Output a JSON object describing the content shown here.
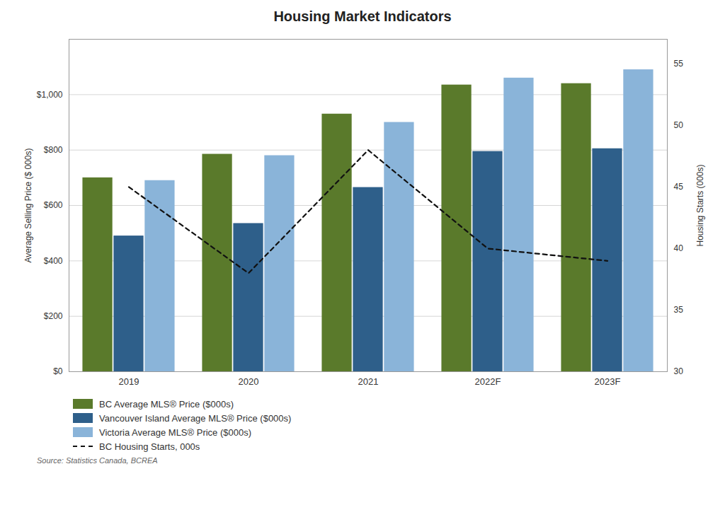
{
  "chart_data": {
    "type": "bar",
    "title": "Housing Market Indicators",
    "categories": [
      "2019",
      "2020",
      "2021",
      "2022F",
      "2023F"
    ],
    "series": [
      {
        "name": "BC Average MLS® Price ($000s)",
        "color": "#5a7a2b",
        "values": [
          700,
          785,
          930,
          1035,
          1040
        ]
      },
      {
        "name": "Vancouver Island Average MLS® Price ($000s)",
        "color": "#2e5f8a",
        "values": [
          490,
          535,
          665,
          795,
          805
        ]
      },
      {
        "name": "Victoria Average MLS® Price ($000s)",
        "color": "#8ab4d9",
        "values": [
          690,
          780,
          900,
          1060,
          1090
        ]
      },
      {
        "name": "BC Housing Starts, 000s",
        "color": "#111111",
        "values": [
          45,
          38,
          48,
          40,
          39
        ],
        "type": "line",
        "axis": "y2",
        "line_style": "dashed"
      }
    ],
    "ylabel": "Average Selling Price ($ 000s)",
    "y2label": "Housing Starts (000s)",
    "ylim": [
      0,
      1200
    ],
    "yticks": [
      {
        "value": 0,
        "label": "$0"
      },
      {
        "value": 200,
        "label": "$200"
      },
      {
        "value": 400,
        "label": "$400"
      },
      {
        "value": 600,
        "label": "$600"
      },
      {
        "value": 800,
        "label": "$800"
      },
      {
        "value": 1000,
        "label": "$1,000"
      }
    ],
    "y2lim": [
      30,
      57
    ],
    "y2ticks": [
      30,
      35,
      40,
      45,
      50,
      55
    ],
    "grid": true,
    "legend": "bottom",
    "annotations": [
      "Source: Statistics Canada, BCREA"
    ]
  }
}
